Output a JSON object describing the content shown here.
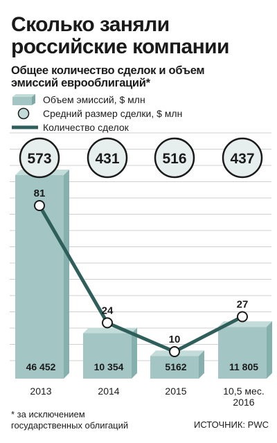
{
  "title": "Сколько заняли\nроссийские компании",
  "subtitle": "Общее количество сделок и объем\nэмиссий еврооблигаций*",
  "legend": {
    "volume": "Объем эмиссий, $ млн",
    "avg": "Средний размер сделки, $ млн",
    "count": "Количество сделок"
  },
  "footnote": "* за исключением\nгосударственных облигаций",
  "source": "ИСТОЧНИК: PWC",
  "colors": {
    "bar": "#a3c6c4",
    "bar_top": "#c3dbd9",
    "line": "#2f5f5a",
    "grid": "#cfcfcf"
  },
  "chart_data": {
    "type": "bar",
    "categories": [
      "2013",
      "2014",
      "2015",
      "10,5 мес.\n2016"
    ],
    "series": [
      {
        "name": "Объем эмиссий, $ млн",
        "type": "bar",
        "values": [
          46452,
          10354,
          5162,
          11805
        ],
        "labels": [
          "46 452",
          "10 354",
          "5162",
          "11 805"
        ]
      },
      {
        "name": "Средний размер сделки, $ млн",
        "type": "circle",
        "values": [
          573,
          431,
          516,
          437
        ]
      },
      {
        "name": "Количество сделок",
        "type": "line",
        "values": [
          81,
          24,
          10,
          27
        ]
      }
    ]
  }
}
